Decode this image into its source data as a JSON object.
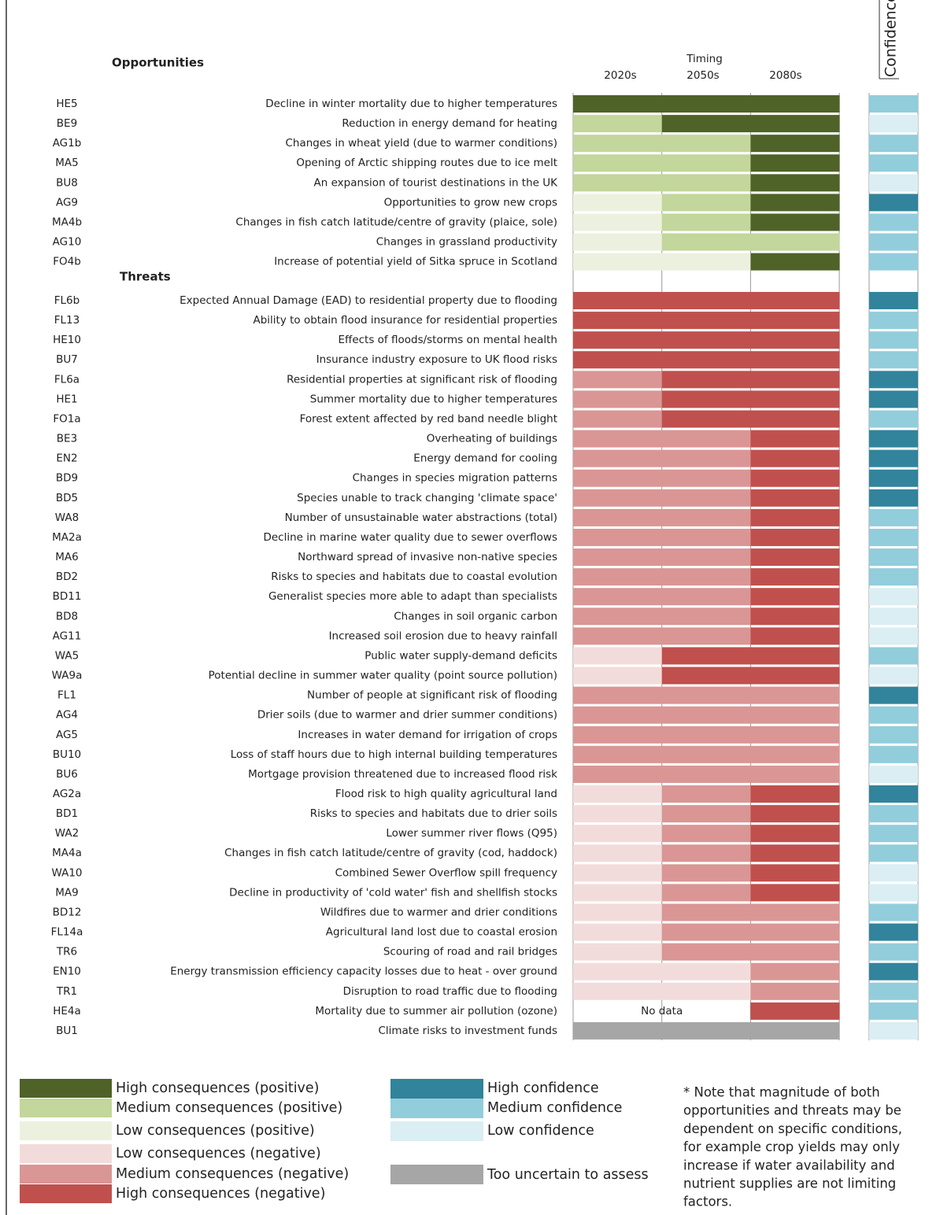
{
  "headers": {
    "opportunities": "Opportunities",
    "threats": "Threats",
    "timing": "Timing",
    "periods": [
      "2020s",
      "2050s",
      "2080s"
    ],
    "confidence": "Confidence"
  },
  "consequences": [
    {
      "label": "High consequences (positive)",
      "color": "#4f6228"
    },
    {
      "label": "Medium consequences (positive)",
      "color": "#c3d69b"
    },
    {
      "label": "Low consequences (positive)",
      "color": "#ebf1de"
    },
    {
      "label": "Low consequences (negative)",
      "color": "#f2dcdb"
    },
    {
      "label": "Medium consequences (negative)",
      "color": "#d99694"
    },
    {
      "label": "High consequences (negative)",
      "color": "#c0504d"
    }
  ],
  "confidence_levels": [
    {
      "label": "High confidence",
      "color": "#31849b"
    },
    {
      "label": "Medium confidence",
      "color": "#92cddc"
    },
    {
      "label": "Low confidence",
      "color": "#daeef3"
    }
  ],
  "uncertain": {
    "label": "Too uncertain to assess",
    "color": "#a6a6a6"
  },
  "opportunities": [
    {
      "code": "HE5",
      "label": "Decline in winter mortality due to higher temperatures",
      "timing": [
        "High consequences (positive)",
        "High consequences (positive)",
        "High consequences (positive)"
      ],
      "confidence": "Medium confidence"
    },
    {
      "code": "BE9",
      "label": "Reduction in energy demand for heating",
      "timing": [
        "Medium consequences (positive)",
        "High consequences (positive)",
        "High consequences (positive)"
      ],
      "confidence": "Low confidence"
    },
    {
      "code": "AG1b",
      "label": "Changes in wheat yield (due to warmer conditions)",
      "timing": [
        "Medium consequences (positive)",
        "Medium consequences (positive)",
        "High consequences (positive)"
      ],
      "confidence": "Medium confidence"
    },
    {
      "code": "MA5",
      "label": "Opening of Arctic shipping routes due to ice melt",
      "timing": [
        "Medium consequences (positive)",
        "Medium consequences (positive)",
        "High consequences (positive)"
      ],
      "confidence": "Medium confidence"
    },
    {
      "code": "BU8",
      "label": "An expansion of tourist destinations in the UK",
      "timing": [
        "Medium consequences (positive)",
        "Medium consequences (positive)",
        "High consequences (positive)"
      ],
      "confidence": "Low confidence"
    },
    {
      "code": "AG9",
      "label": "Opportunities to grow new crops",
      "timing": [
        "Low consequences (positive)",
        "Medium consequences (positive)",
        "High consequences (positive)"
      ],
      "confidence": "High confidence"
    },
    {
      "code": "MA4b",
      "label": "Changes in fish catch latitude/centre of gravity (plaice, sole)",
      "timing": [
        "Low consequences (positive)",
        "Medium consequences (positive)",
        "High consequences (positive)"
      ],
      "confidence": "Medium confidence"
    },
    {
      "code": "AG10",
      "label": "Changes in grassland productivity",
      "timing": [
        "Low consequences (positive)",
        "Medium consequences (positive)",
        "Medium consequences (positive)"
      ],
      "confidence": "Medium confidence"
    },
    {
      "code": "FO4b",
      "label": "Increase of potential yield of Sitka spruce in Scotland",
      "timing": [
        "Low consequences (positive)",
        "Low consequences (positive)",
        "High consequences (positive)"
      ],
      "confidence": "Medium confidence"
    }
  ],
  "threats": [
    {
      "code": "FL6b",
      "label": "Expected Annual Damage (EAD) to residential property due to flooding",
      "timing": [
        "High consequences (negative)",
        "High consequences (negative)",
        "High consequences (negative)"
      ],
      "confidence": "High confidence"
    },
    {
      "code": "FL13",
      "label": "Ability to obtain flood insurance for residential properties",
      "timing": [
        "High consequences (negative)",
        "High consequences (negative)",
        "High consequences (negative)"
      ],
      "confidence": "Medium confidence"
    },
    {
      "code": "HE10",
      "label": "Effects of floods/storms on mental health",
      "timing": [
        "High consequences (negative)",
        "High consequences (negative)",
        "High consequences (negative)"
      ],
      "confidence": "Medium confidence"
    },
    {
      "code": "BU7",
      "label": "Insurance industry exposure to UK flood risks",
      "timing": [
        "High consequences (negative)",
        "High consequences (negative)",
        "High consequences (negative)"
      ],
      "confidence": "Medium confidence"
    },
    {
      "code": "FL6a",
      "label": "Residential properties at significant risk of flooding",
      "timing": [
        "Medium consequences (negative)",
        "High consequences (negative)",
        "High consequences (negative)"
      ],
      "confidence": "High confidence"
    },
    {
      "code": "HE1",
      "label": "Summer mortality due to higher temperatures",
      "timing": [
        "Medium consequences (negative)",
        "High consequences (negative)",
        "High consequences (negative)"
      ],
      "confidence": "High confidence"
    },
    {
      "code": "FO1a",
      "label": "Forest extent affected by red band needle blight",
      "timing": [
        "Medium consequences (negative)",
        "High consequences (negative)",
        "High consequences (negative)"
      ],
      "confidence": "Medium confidence"
    },
    {
      "code": "BE3",
      "label": "Overheating of buildings",
      "timing": [
        "Medium consequences (negative)",
        "Medium consequences (negative)",
        "High consequences (negative)"
      ],
      "confidence": "High confidence"
    },
    {
      "code": "EN2",
      "label": "Energy demand for cooling",
      "timing": [
        "Medium consequences (negative)",
        "Medium consequences (negative)",
        "High consequences (negative)"
      ],
      "confidence": "High confidence"
    },
    {
      "code": "BD9",
      "label": "Changes in species migration  patterns",
      "timing": [
        "Medium consequences (negative)",
        "Medium consequences (negative)",
        "High consequences (negative)"
      ],
      "confidence": "High confidence"
    },
    {
      "code": "BD5",
      "label": "Species unable to track changing 'climate space'",
      "timing": [
        "Medium consequences (negative)",
        "Medium consequences (negative)",
        "High consequences (negative)"
      ],
      "confidence": "High confidence"
    },
    {
      "code": "WA8",
      "label": "Number of unsustainable water abstractions (total)",
      "timing": [
        "Medium consequences (negative)",
        "Medium consequences (negative)",
        "High consequences (negative)"
      ],
      "confidence": "Medium confidence"
    },
    {
      "code": "MA2a",
      "label": "Decline in marine water quality due to sewer overflows",
      "timing": [
        "Medium consequences (negative)",
        "Medium consequences (negative)",
        "High consequences (negative)"
      ],
      "confidence": "Medium confidence"
    },
    {
      "code": "MA6",
      "label": "Northward spread of invasive non-native species",
      "timing": [
        "Medium consequences (negative)",
        "Medium consequences (negative)",
        "High consequences (negative)"
      ],
      "confidence": "Medium confidence"
    },
    {
      "code": "BD2",
      "label": "Risks to species and habitats due to coastal evolution",
      "timing": [
        "Medium consequences (negative)",
        "Medium consequences (negative)",
        "High consequences (negative)"
      ],
      "confidence": "Medium confidence"
    },
    {
      "code": "BD11",
      "label": "Generalist species more able to adapt than specialists",
      "timing": [
        "Medium consequences (negative)",
        "Medium consequences (negative)",
        "High consequences (negative)"
      ],
      "confidence": "Low confidence"
    },
    {
      "code": "BD8",
      "label": "Changes in soil organic carbon",
      "timing": [
        "Medium consequences (negative)",
        "Medium consequences (negative)",
        "High consequences (negative)"
      ],
      "confidence": "Low confidence"
    },
    {
      "code": "AG11",
      "label": "Increased soil erosion due to heavy rainfall",
      "timing": [
        "Medium consequences (negative)",
        "Medium consequences (negative)",
        "High consequences (negative)"
      ],
      "confidence": "Low confidence"
    },
    {
      "code": "WA5",
      "label": "Public water supply-demand deficits",
      "timing": [
        "Low consequences (negative)",
        "High consequences (negative)",
        "High consequences (negative)"
      ],
      "confidence": "Medium confidence"
    },
    {
      "code": "WA9a",
      "label": "Potential decline in summer water quality (point source pollution)",
      "timing": [
        "Low consequences (negative)",
        "High consequences (negative)",
        "High consequences (negative)"
      ],
      "confidence": "Low confidence"
    },
    {
      "code": "FL1",
      "label": "Number of people at significant risk of flooding",
      "timing": [
        "Medium consequences (negative)",
        "Medium consequences (negative)",
        "Medium consequences (negative)"
      ],
      "confidence": "High confidence"
    },
    {
      "code": "AG4",
      "label": "Drier soils (due to warmer and drier summer conditions)",
      "timing": [
        "Medium consequences (negative)",
        "Medium consequences (negative)",
        "Medium consequences (negative)"
      ],
      "confidence": "Medium confidence"
    },
    {
      "code": "AG5",
      "label": "Increases in water demand for irrigation of crops",
      "timing": [
        "Medium consequences (negative)",
        "Medium consequences (negative)",
        "Medium consequences (negative)"
      ],
      "confidence": "Medium confidence"
    },
    {
      "code": "BU10",
      "label": "Loss of staff hours due to high internal building temperatures",
      "timing": [
        "Medium consequences (negative)",
        "Medium consequences (negative)",
        "Medium consequences (negative)"
      ],
      "confidence": "Medium confidence"
    },
    {
      "code": "BU6",
      "label": "Mortgage provision threatened due to increased flood risk",
      "timing": [
        "Medium consequences (negative)",
        "Medium consequences (negative)",
        "Medium consequences (negative)"
      ],
      "confidence": "Low confidence"
    },
    {
      "code": "AG2a",
      "label": "Flood risk to high quality agricultural land",
      "timing": [
        "Low consequences (negative)",
        "Medium consequences (negative)",
        "High consequences (negative)"
      ],
      "confidence": "High confidence"
    },
    {
      "code": "BD1",
      "label": "Risks to species and habitats due to drier soils",
      "timing": [
        "Low consequences (negative)",
        "Medium consequences (negative)",
        "High consequences (negative)"
      ],
      "confidence": "Medium confidence"
    },
    {
      "code": "WA2",
      "label": "Lower summer river flows (Q95)",
      "timing": [
        "Low consequences (negative)",
        "Medium consequences (negative)",
        "High consequences (negative)"
      ],
      "confidence": "Medium confidence"
    },
    {
      "code": "MA4a",
      "label": "Changes in fish catch latitude/centre of gravity (cod, haddock)",
      "timing": [
        "Low consequences (negative)",
        "Medium consequences (negative)",
        "High consequences (negative)"
      ],
      "confidence": "Medium confidence"
    },
    {
      "code": "WA10",
      "label": "Combined Sewer Overflow spill frequency",
      "timing": [
        "Low consequences (negative)",
        "Medium consequences (negative)",
        "High consequences (negative)"
      ],
      "confidence": "Low confidence"
    },
    {
      "code": "MA9",
      "label": "Decline in productivity of 'cold water' fish and shellfish stocks",
      "timing": [
        "Low consequences (negative)",
        "Medium consequences (negative)",
        "High consequences (negative)"
      ],
      "confidence": "Low confidence"
    },
    {
      "code": "BD12",
      "label": "Wildfires due to warmer and drier conditions",
      "timing": [
        "Low consequences (negative)",
        "Medium consequences (negative)",
        "Medium consequences (negative)"
      ],
      "confidence": "Medium confidence"
    },
    {
      "code": "FL14a",
      "label": "Agricultural land lost due to coastal erosion",
      "timing": [
        "Low consequences (negative)",
        "Medium consequences (negative)",
        "Medium consequences (negative)"
      ],
      "confidence": "High confidence"
    },
    {
      "code": "TR6",
      "label": "Scouring of road and rail bridges",
      "timing": [
        "Low consequences (negative)",
        "Medium consequences (negative)",
        "Medium consequences (negative)"
      ],
      "confidence": "Medium confidence"
    },
    {
      "code": "EN10",
      "label": "Energy transmission  efficiency capacity losses due to heat - over ground",
      "timing": [
        "Low consequences (negative)",
        "Low consequences (negative)",
        "Medium consequences (negative)"
      ],
      "confidence": "High confidence"
    },
    {
      "code": "TR1",
      "label": "Disruption to road traffic due to flooding",
      "timing": [
        "Low consequences (negative)",
        "Low consequences (negative)",
        "Medium consequences (negative)"
      ],
      "confidence": "Medium confidence"
    },
    {
      "code": "HE4a",
      "label": "Mortality due to summer air pollution (ozone)",
      "timing": [
        null,
        null,
        "High consequences (negative)"
      ],
      "note": "No data",
      "confidence": "Medium confidence"
    },
    {
      "code": "BU1",
      "label": "Climate risks to investment funds",
      "timing": [
        "Too uncertain to assess",
        "Too uncertain to assess",
        "Too uncertain to assess"
      ],
      "confidence": "Low confidence"
    }
  ],
  "note": [
    "* Note that magnitude of both",
    "opportunities and threats may be",
    "dependent on specific conditions,",
    "for example crop yields may only",
    "increase if water availability and",
    "nutrient supplies are not limiting",
    "factors."
  ]
}
